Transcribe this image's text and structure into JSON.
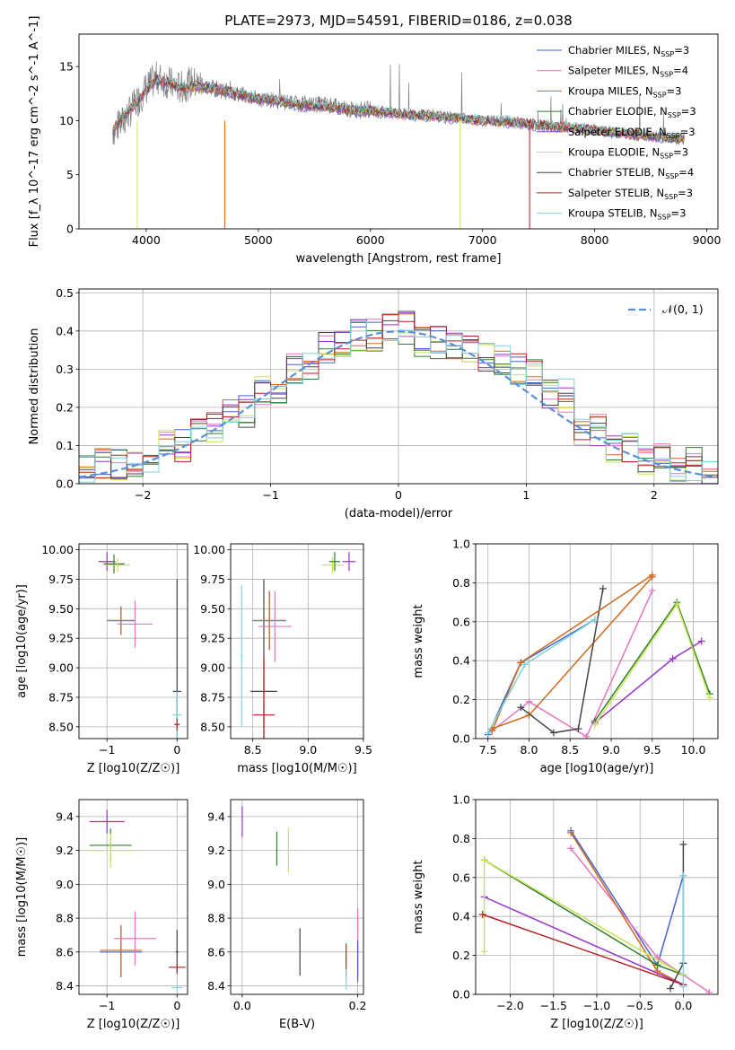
{
  "colors": {
    "Chabrier MILES": "#4466cc",
    "Salpeter MILES": "#e377c2",
    "Kroupa MILES": "#d2691e",
    "Chabrier ELODIE": "#2e7d32",
    "Salpeter ELODIE": "#9932cc",
    "Kroupa ELODIE": "#c8e650",
    "Chabrier STELIB": "#444444",
    "Salpeter STELIB": "#b22222",
    "Kroupa STELIB": "#7fd3dc",
    "data": "#7f7f7f",
    "gaussian": "#5b8fd6"
  },
  "chart_data": [
    {
      "type": "line",
      "title": "PLATE=2973, MJD=54591, FIBERID=0186, z=0.038",
      "xlabel": "wavelength [Angstrom, rest frame]",
      "ylabel": "Flux [f_λ 10^-17 erg cm^-2 s^-1 A^-1]",
      "xlim": [
        3400,
        9100
      ],
      "ylim": [
        0,
        18
      ],
      "xticks": [
        "4000",
        "5000",
        "6000",
        "7000",
        "8000",
        "9000"
      ],
      "yticks": [
        "0",
        "5",
        "10",
        "15"
      ],
      "legend_position": "top-right",
      "legend": [
        {
          "label": "Chabrier MILES, N",
          "sub": "SSP",
          "tail": "=3"
        },
        {
          "label": "Salpeter MILES, N",
          "sub": "SSP",
          "tail": "=4"
        },
        {
          "label": "Kroupa MILES, N",
          "sub": "SSP",
          "tail": "=3"
        },
        {
          "label": "Chabrier ELODIE, N",
          "sub": "SSP",
          "tail": "=3"
        },
        {
          "label": "Salpeter ELODIE, N",
          "sub": "SSP",
          "tail": "=3"
        },
        {
          "label": "Kroupa ELODIE, N",
          "sub": "SSP",
          "tail": "=3"
        },
        {
          "label": "Chabrier STELIB, N",
          "sub": "SSP",
          "tail": "=4"
        },
        {
          "label": "Salpeter STELIB, N",
          "sub": "SSP",
          "tail": "=3"
        },
        {
          "label": "Kroupa STELIB, N",
          "sub": "SSP",
          "tail": "=3"
        }
      ],
      "series": [
        {
          "name": "data",
          "x": [
            3700,
            3800,
            3900,
            4000,
            4100,
            4200,
            4300,
            4400,
            4600,
            4800,
            5000,
            5200,
            5400,
            5600,
            5800,
            6000,
            6200,
            6400,
            6600,
            6800,
            7000,
            7200,
            7400,
            7600,
            7800,
            8000,
            8200,
            8400,
            8600,
            8800
          ],
          "y": [
            9,
            10,
            11.5,
            13,
            14,
            13.5,
            13,
            13.5,
            13,
            12.5,
            12,
            11.8,
            11.5,
            11.5,
            11,
            11,
            10.8,
            10.5,
            10.5,
            10.2,
            10,
            10,
            9.7,
            9.5,
            9.3,
            9.2,
            8.8,
            8.6,
            8.5,
            8.3
          ]
        },
        {
          "name": "model",
          "x": [
            3700,
            3800,
            3900,
            4000,
            4100,
            4200,
            4300,
            4400,
            4600,
            4800,
            5000,
            5200,
            5400,
            5600,
            5800,
            6000,
            6200,
            6400,
            6600,
            6800,
            7000,
            7200,
            7400,
            7600,
            7800,
            8000,
            8200,
            8400,
            8600,
            8800
          ],
          "y": [
            9,
            10.5,
            11.5,
            12.8,
            13.8,
            13.5,
            13,
            13.2,
            13,
            12.5,
            12,
            11.8,
            11.4,
            11.3,
            11,
            10.9,
            10.7,
            10.5,
            10.4,
            10.2,
            10,
            9.9,
            9.7,
            9.5,
            9.3,
            9.1,
            8.9,
            8.7,
            8.5,
            8.3
          ]
        }
      ]
    },
    {
      "type": "line",
      "xlabel": "(data-model)/error",
      "ylabel": "Normed distribution",
      "xlim": [
        -2.5,
        2.5
      ],
      "ylim": [
        0,
        0.51
      ],
      "xticks": [
        "−2",
        "−1",
        "0",
        "1",
        "2"
      ],
      "yticks": [
        "0.0",
        "0.1",
        "0.2",
        "0.3",
        "0.4",
        "0.5"
      ],
      "legend_position": "top-right",
      "legend_label": "𝒩(0, 1)",
      "x": [
        -2.5,
        -2.25,
        -2.0,
        -1.75,
        -1.5,
        -1.25,
        -1.0,
        -0.75,
        -0.5,
        -0.25,
        0.0,
        0.25,
        0.5,
        0.75,
        1.0,
        1.25,
        1.5,
        1.75,
        2.0,
        2.25,
        2.5
      ],
      "series": [
        {
          "name": "histogram (mean)",
          "values": [
            0.03,
            0.05,
            0.06,
            0.1,
            0.15,
            0.19,
            0.25,
            0.3,
            0.36,
            0.39,
            0.41,
            0.37,
            0.35,
            0.33,
            0.3,
            0.23,
            0.14,
            0.1,
            0.07,
            0.05,
            0.03
          ]
        }
      ]
    },
    {
      "type": "scatter",
      "xlabel": "Z [log10(Z/Z☉)]",
      "ylabel": "age [log10(age/yr)]",
      "xlim": [
        -1.4,
        0.15
      ],
      "ylim": [
        8.4,
        10.05
      ],
      "xticks": [
        "−1",
        "0"
      ],
      "yticks": [
        "8.50",
        "8.75",
        "9.00",
        "9.25",
        "9.50",
        "9.75",
        "10.00"
      ],
      "points": [
        {
          "series": "Salpeter ELODIE",
          "x": -1.0,
          "y": 9.9,
          "xerr": 0.12,
          "yerr": 0.08
        },
        {
          "series": "Chabrier ELODIE",
          "x": -0.9,
          "y": 9.88,
          "xerr": 0.15,
          "yerr": 0.08
        },
        {
          "series": "Kroupa ELODIE",
          "x": -0.85,
          "y": 9.87,
          "xerr": 0.18,
          "yerr": 0.06
        },
        {
          "series": "Chabrier MILES",
          "x": -0.8,
          "y": 9.4,
          "xerr": 0.2,
          "yerr": 0.12
        },
        {
          "series": "Kroupa MILES",
          "x": -0.8,
          "y": 9.4,
          "xerr": 0.2,
          "yerr": 0.12
        },
        {
          "series": "Salpeter MILES",
          "x": -0.6,
          "y": 9.37,
          "xerr": 0.25,
          "yerr": 0.2
        },
        {
          "series": "Chabrier STELIB",
          "x": 0.0,
          "y": 8.8,
          "xerr": 0.06,
          "yerr": 0.95
        },
        {
          "series": "Kroupa STELIB",
          "x": 0.0,
          "y": 8.6,
          "xerr": 0.06,
          "yerr": 0.2
        },
        {
          "series": "Salpeter STELIB",
          "x": 0.0,
          "y": 8.52,
          "xerr": 0.04,
          "yerr": 0.05
        }
      ]
    },
    {
      "type": "scatter",
      "xlabel": "mass [log10(M/M☉)]",
      "ylabel": "",
      "xlim": [
        8.3,
        9.5
      ],
      "ylim": [
        8.4,
        10.05
      ],
      "xticks": [
        "8.5",
        "9.0",
        "9.5"
      ],
      "yticks": [
        "8.50",
        "8.75",
        "9.00",
        "9.25",
        "9.50",
        "9.75",
        "10.00"
      ],
      "points": [
        {
          "series": "Kroupa STELIB",
          "x": 8.4,
          "y": 9.1,
          "xerr": 0.01,
          "yerr": 0.6
        },
        {
          "series": "Chabrier STELIB",
          "x": 8.6,
          "y": 8.8,
          "xerr": 0.12,
          "yerr": 0.95
        },
        {
          "series": "Salpeter STELIB",
          "x": 8.6,
          "y": 8.6,
          "xerr": 0.1,
          "yerr": 0.5
        },
        {
          "series": "Chabrier MILES",
          "x": 8.65,
          "y": 9.4,
          "xerr": 0.15,
          "yerr": 0.25
        },
        {
          "series": "Kroupa MILES",
          "x": 8.65,
          "y": 9.4,
          "xerr": 0.15,
          "yerr": 0.25
        },
        {
          "series": "Salpeter MILES",
          "x": 8.7,
          "y": 9.35,
          "xerr": 0.15,
          "yerr": 0.3
        },
        {
          "series": "Kroupa ELODIE",
          "x": 9.22,
          "y": 9.87,
          "xerr": 0.1,
          "yerr": 0.07
        },
        {
          "series": "Chabrier ELODIE",
          "x": 9.24,
          "y": 9.9,
          "xerr": 0.05,
          "yerr": 0.08
        },
        {
          "series": "Salpeter ELODIE",
          "x": 9.37,
          "y": 9.9,
          "xerr": 0.06,
          "yerr": 0.08
        }
      ]
    },
    {
      "type": "line",
      "xlabel": "age [log10(age/yr)]",
      "ylabel": "mass weight",
      "xlim": [
        7.35,
        10.3
      ],
      "ylim": [
        0,
        1
      ],
      "xticks": [
        "7.5",
        "8.0",
        "8.5",
        "9.0",
        "9.5",
        "10.0"
      ],
      "yticks": [
        "0.0",
        "0.2",
        "0.4",
        "0.6",
        "0.8",
        "1.0"
      ],
      "series": [
        {
          "name": "Chabrier MILES",
          "x": [
            7.5,
            7.9,
            8.8
          ],
          "y": [
            0.02,
            0.39,
            0.61
          ]
        },
        {
          "name": "Salpeter MILES",
          "x": [
            7.55,
            8.0,
            8.7,
            9.5
          ],
          "y": [
            0.04,
            0.19,
            0.01,
            0.76
          ]
        },
        {
          "name": "Kroupa MILES",
          "x": [
            7.55,
            8.0,
            9.5
          ],
          "y": [
            0.05,
            0.12,
            0.83
          ]
        },
        {
          "name": "Chabrier ELODIE",
          "x": [
            8.8,
            9.8,
            10.2
          ],
          "y": [
            0.09,
            0.7,
            0.23
          ]
        },
        {
          "name": "Salpeter ELODIE",
          "x": [
            8.8,
            9.75,
            10.1
          ],
          "y": [
            0.08,
            0.41,
            0.5
          ]
        },
        {
          "name": "Kroupa ELODIE",
          "x": [
            8.8,
            9.8,
            10.2
          ],
          "y": [
            0.07,
            0.69,
            0.21
          ]
        },
        {
          "name": "Chabrier STELIB",
          "x": [
            7.9,
            8.3,
            8.6,
            8.9
          ],
          "y": [
            0.16,
            0.03,
            0.05,
            0.77
          ]
        },
        {
          "name": "Chabrier STELIB (2)",
          "x": [
            7.55,
            7.9,
            9.5
          ],
          "y": [
            0.04,
            0.39,
            0.84
          ]
        },
        {
          "name": "Kroupa STELIB",
          "x": [
            7.5,
            7.95,
            8.8
          ],
          "y": [
            0.03,
            0.38,
            0.61
          ]
        }
      ]
    },
    {
      "type": "scatter",
      "xlabel": "Z [log10(Z/Z☉)]",
      "ylabel": "mass [log10(M/M☉)]",
      "xlim": [
        -1.4,
        0.15
      ],
      "ylim": [
        8.35,
        9.5
      ],
      "xticks": [
        "−1",
        "0"
      ],
      "yticks": [
        "8.4",
        "8.6",
        "8.8",
        "9.0",
        "9.2",
        "9.4"
      ],
      "points": [
        {
          "series": "Salpeter ELODIE",
          "x": -1.0,
          "y": 9.37,
          "xerr": 0.25,
          "yerr": 0.07
        },
        {
          "series": "Chabrier ELODIE",
          "x": -0.95,
          "y": 9.23,
          "xerr": 0.3,
          "yerr": 0.1
        },
        {
          "series": "Kroupa ELODIE",
          "x": -0.95,
          "y": 9.2,
          "xerr": 0.3,
          "yerr": 0.1
        },
        {
          "series": "Chabrier MILES",
          "x": -0.8,
          "y": 8.6,
          "xerr": 0.3,
          "yerr": 0.15
        },
        {
          "series": "Kroupa MILES",
          "x": -0.8,
          "y": 8.61,
          "xerr": 0.3,
          "yerr": 0.15
        },
        {
          "series": "Salpeter MILES",
          "x": -0.6,
          "y": 8.68,
          "xerr": 0.3,
          "yerr": 0.16
        },
        {
          "series": "Chabrier STELIB",
          "x": 0.0,
          "y": 8.6,
          "xerr": 0.02,
          "yerr": 0.13
        },
        {
          "series": "Salpeter STELIB",
          "x": 0.0,
          "y": 8.51,
          "xerr": 0.12,
          "yerr": 0.02
        },
        {
          "series": "Kroupa STELIB",
          "x": 0.0,
          "y": 8.39,
          "xerr": 0.08,
          "yerr": 0.02
        }
      ]
    },
    {
      "type": "scatter",
      "xlabel": "E(B-V)",
      "ylabel": "",
      "xlim": [
        -0.02,
        0.21
      ],
      "ylim": [
        8.35,
        9.5
      ],
      "xticks": [
        "0.0",
        "0.2"
      ],
      "yticks": [
        "8.4",
        "8.6",
        "8.8",
        "9.0",
        "9.2",
        "9.4"
      ],
      "points": [
        {
          "series": "Salpeter ELODIE",
          "x": 0.0,
          "y": 9.37,
          "xerr": 0,
          "yerr": 0.09
        },
        {
          "series": "Chabrier ELODIE",
          "x": 0.06,
          "y": 9.21,
          "xerr": 0,
          "yerr": 0.1
        },
        {
          "series": "Kroupa ELODIE",
          "x": 0.08,
          "y": 9.2,
          "xerr": 0,
          "yerr": 0.13
        },
        {
          "series": "Chabrier STELIB",
          "x": 0.1,
          "y": 8.6,
          "xerr": 0,
          "yerr": 0.14
        },
        {
          "series": "Salpeter STELIB",
          "x": 0.18,
          "y": 8.55,
          "xerr": 0,
          "yerr": 0.1
        },
        {
          "series": "Kroupa STELIB",
          "x": 0.18,
          "y": 8.44,
          "xerr": 0,
          "yerr": 0.06
        },
        {
          "series": "Kroupa MILES",
          "x": 0.2,
          "y": 8.62,
          "xerr": 0,
          "yerr": 0.2
        },
        {
          "series": "Salpeter MILES",
          "x": 0.2,
          "y": 8.66,
          "xerr": 0,
          "yerr": 0.2
        },
        {
          "series": "Chabrier MILES",
          "x": 0.2,
          "y": 8.55,
          "xerr": 0,
          "yerr": 0.12
        }
      ]
    },
    {
      "type": "line",
      "xlabel": "Z [log10(Z/Z☉)]",
      "ylabel": "mass weight",
      "xlim": [
        -2.4,
        0.4
      ],
      "ylim": [
        0,
        1
      ],
      "xticks": [
        "−2.0",
        "−1.5",
        "−1.0",
        "−0.5",
        "0.0"
      ],
      "yticks": [
        "0.0",
        "0.2",
        "0.4",
        "0.6",
        "0.8",
        "1.0"
      ],
      "series": [
        {
          "name": "Chabrier MILES",
          "x": [
            -1.3,
            -0.3,
            0.0
          ],
          "y": [
            0.84,
            0.15,
            0.61
          ]
        },
        {
          "name": "Salpeter MILES",
          "x": [
            -1.3,
            -0.3,
            0.3
          ],
          "y": [
            0.75,
            0.19,
            0.01
          ]
        },
        {
          "name": "Kroupa MILES",
          "x": [
            -1.3,
            -0.3,
            0.0
          ],
          "y": [
            0.83,
            0.12,
            0.05
          ]
        },
        {
          "name": "Chabrier ELODIE",
          "x": [
            -2.3,
            -0.3,
            0.0
          ],
          "y": [
            0.69,
            0.15,
            0.1
          ]
        },
        {
          "name": "Salpeter ELODIE",
          "x": [
            -2.3,
            0.0
          ],
          "y": [
            0.5,
            0.05
          ]
        },
        {
          "name": "Kroupa ELODIE",
          "x": [
            -2.3,
            -2.3,
            0.0
          ],
          "y": [
            0.22,
            0.69,
            0.1
          ]
        },
        {
          "name": "Chabrier STELIB",
          "x": [
            -0.15,
            0.0,
            0.0
          ],
          "y": [
            0.03,
            0.16,
            0.77
          ]
        },
        {
          "name": "Salpeter STELIB",
          "x": [
            -2.32,
            0.0
          ],
          "y": [
            0.41,
            0.05
          ]
        },
        {
          "name": "Kroupa STELIB",
          "x": [
            0.0,
            0.0
          ],
          "y": [
            0.04,
            0.61
          ]
        }
      ]
    }
  ]
}
